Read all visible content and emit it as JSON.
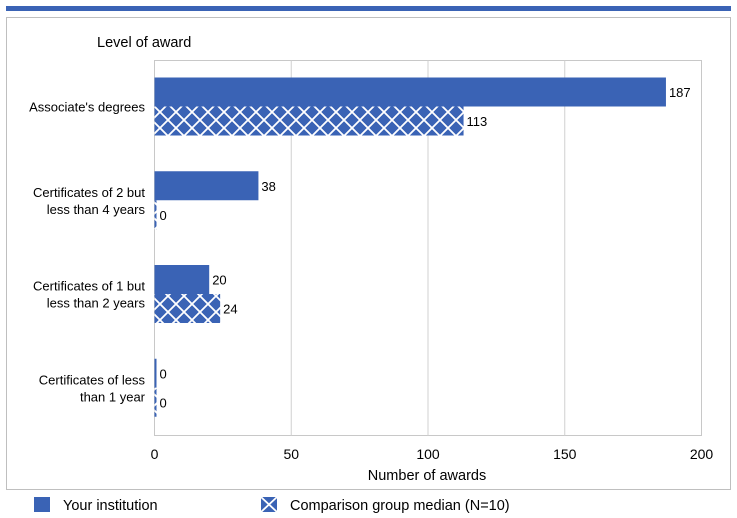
{
  "chart_data": {
    "type": "bar",
    "orientation": "horizontal",
    "y_axis_title": "Level of award",
    "xlabel": "Number of awards",
    "xlim": [
      0,
      200
    ],
    "x_ticks": [
      0,
      50,
      100,
      150,
      200
    ],
    "grid": true,
    "legend_placement": "bottom",
    "categories": [
      [
        "Associate's degrees"
      ],
      [
        "Certificates of 2 but",
        "less than 4 years"
      ],
      [
        "Certificates of 1 but",
        "less than 2 years"
      ],
      [
        "Certificates of less",
        "than 1 year"
      ]
    ],
    "series": [
      {
        "name": "Your institution",
        "values": [
          187,
          38,
          20,
          0
        ],
        "pattern": "solid"
      },
      {
        "name": "Comparison group median (N=10)",
        "values": [
          113,
          0,
          24,
          0
        ],
        "pattern": "crosshatch"
      }
    ],
    "colors": {
      "bar": "#3a63b5",
      "top_rule": "#3a63b5",
      "frame": "#bfbfbf",
      "grid": "#d0d0d0"
    }
  }
}
